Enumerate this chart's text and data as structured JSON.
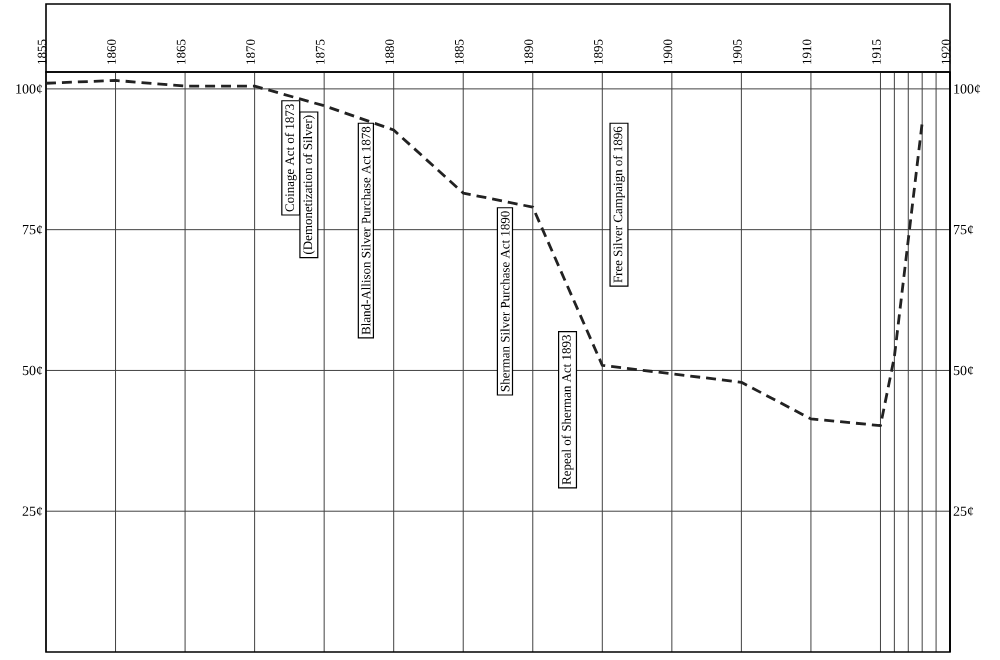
{
  "chart_data": {
    "type": "line",
    "x": [
      1855,
      1860,
      1865,
      1870,
      1875,
      1880,
      1885,
      1890,
      1895,
      1905,
      1910,
      1915,
      1916,
      1918
    ],
    "values": [
      101,
      101.5,
      100.5,
      100.5,
      97,
      92.7,
      81.5,
      79,
      50.9,
      47.9,
      41.4,
      40.2,
      52.4,
      94
    ],
    "color": "#222222",
    "line_style": "dashed",
    "marker": "none",
    "grid": true,
    "xlim": [
      1855,
      1920
    ],
    "xticks": [
      1855,
      1860,
      1865,
      1870,
      1875,
      1880,
      1885,
      1890,
      1895,
      1900,
      1905,
      1910,
      1915,
      {
        "value": 1916,
        "label": null
      },
      {
        "value": 1917,
        "label": null
      },
      {
        "value": 1918,
        "label": null
      },
      {
        "value": 1919,
        "label": null
      },
      1920
    ],
    "ylim": [
      0,
      103
    ],
    "yticks": [
      {
        "value": 25,
        "label": "25¢"
      },
      {
        "value": 50,
        "label": "50¢"
      },
      {
        "value": 75,
        "label": "75¢"
      },
      {
        "value": 100,
        "label": "100¢"
      }
    ],
    "y2lim": [
      0,
      103
    ],
    "y2ticks": [
      {
        "value": 25,
        "label": "25¢"
      },
      {
        "value": 50,
        "label": "50¢"
      },
      {
        "value": 75,
        "label": "75¢"
      },
      {
        "value": 100,
        "label": "100¢"
      }
    ],
    "annotations": [
      "Coinage Act of 1873",
      "(Demonetization of Silver)",
      "Bland-Allison Silver Purchase Act 1878",
      "Sherman Silver Purchase Act 1890",
      "Repeal of Sherman Act 1893",
      "Free Silver Campaign of 1896"
    ]
  }
}
